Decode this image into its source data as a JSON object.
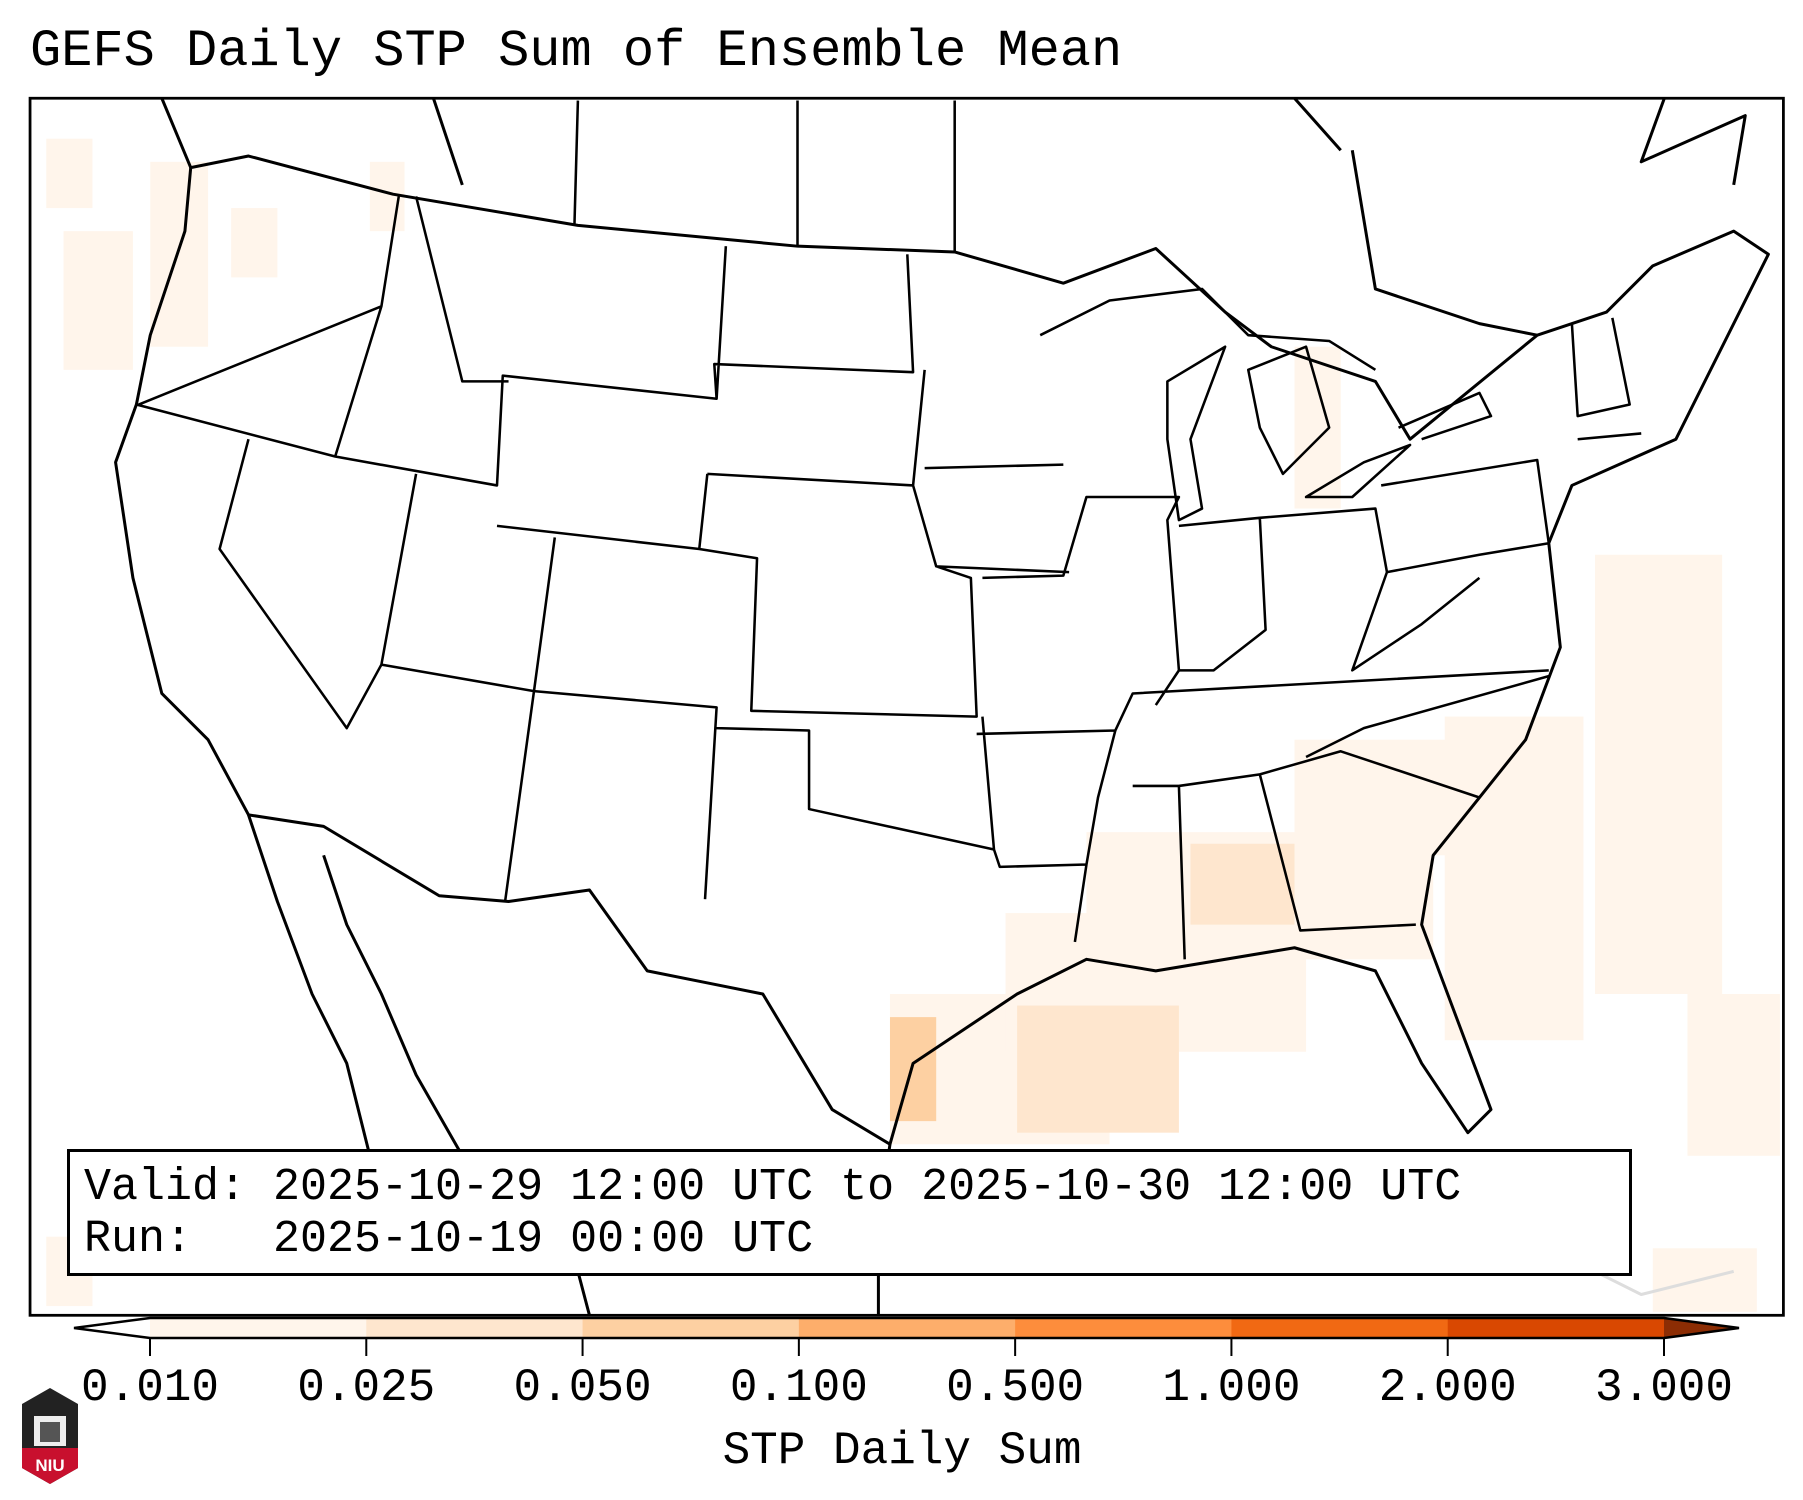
{
  "title": "GEFS Daily STP Sum of Ensemble Mean",
  "info": {
    "valid_line": "Valid: 2025-10-29 12:00 UTC to 2025-10-30 12:00 UTC",
    "run_line": "Run:   2025-10-19 00:00 UTC"
  },
  "colorbar": {
    "label": "STP Daily Sum",
    "ticks": [
      "0.010",
      "0.025",
      "0.050",
      "0.100",
      "0.500",
      "1.000",
      "2.000",
      "3.000"
    ],
    "colors": [
      "#fff5eb",
      "#fee6ce",
      "#fdd0a2",
      "#fdae6b",
      "#fd8d3c",
      "#f16913",
      "#d94801"
    ],
    "under_color": "#ffffff",
    "over_color": "#8c2d04"
  },
  "logo": {
    "text": "NIU"
  }
}
